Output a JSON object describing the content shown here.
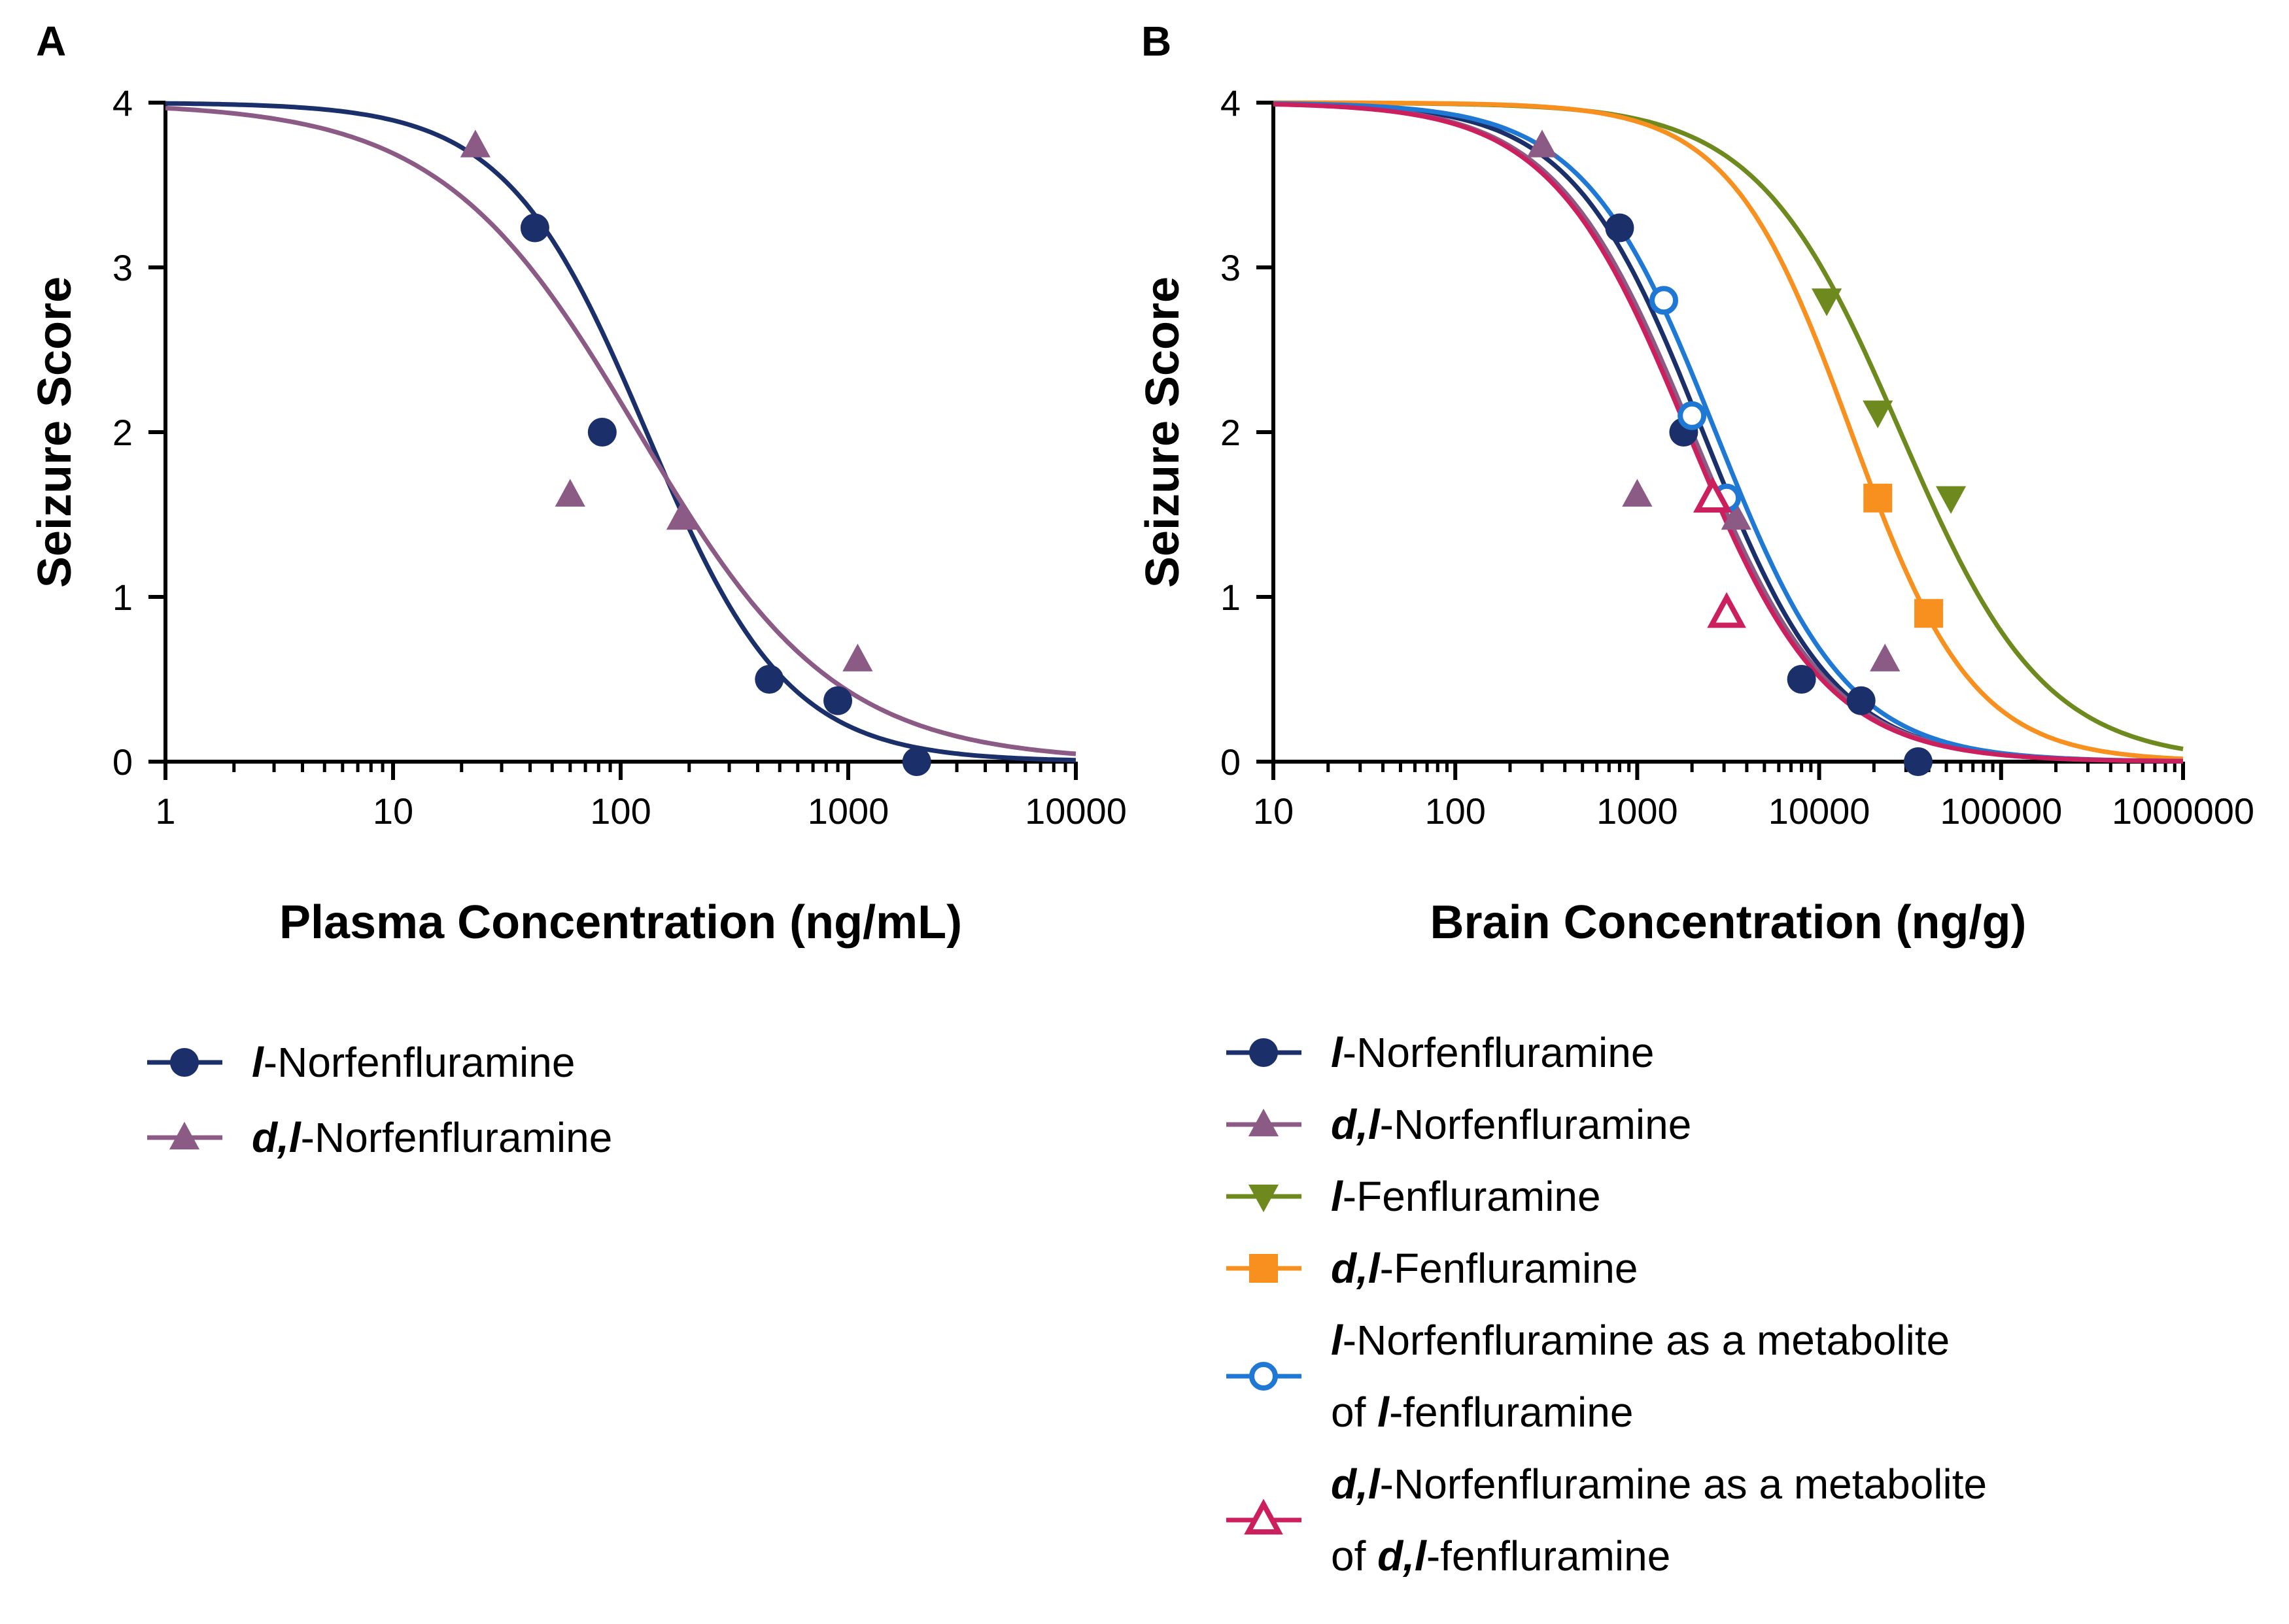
{
  "chart_data": [
    {
      "panel": "A",
      "type": "scatter",
      "xlabel": "Plasma Concentration (ng/mL)",
      "ylabel": "Seizure Score",
      "xscale": "log",
      "xlim": [
        1,
        10000
      ],
      "ylim": [
        0,
        4
      ],
      "xticks": [
        "1",
        "10",
        "100",
        "1000",
        "10000"
      ],
      "yticks": [
        "0",
        "1",
        "2",
        "3",
        "4"
      ],
      "grid": false,
      "legend_position": "below",
      "series": [
        {
          "name_prefix": "l",
          "name_suffix": "-Norfenfluramine",
          "color": "#1b2f6b",
          "marker": "circle",
          "filled": true,
          "points": [
            [
              42,
              3.24
            ],
            [
              83,
              2.0
            ],
            [
              450,
              0.5
            ],
            [
              900,
              0.37
            ],
            [
              2000,
              0.0
            ]
          ],
          "fit": {
            "top": 4,
            "bottom": 0,
            "ec50": 130,
            "hill": 1.4
          }
        },
        {
          "name_prefix": "d,l",
          "name_suffix": "-Norfenfluramine",
          "color": "#8b5a85",
          "marker": "triangle",
          "filled": true,
          "points": [
            [
              23,
              3.74
            ],
            [
              60,
              1.62
            ],
            [
              185,
              1.48
            ],
            [
              1100,
              0.62
            ]
          ],
          "fit": {
            "top": 4,
            "bottom": 0,
            "ec50": 120,
            "hill": 1.0
          }
        }
      ]
    },
    {
      "panel": "B",
      "type": "scatter",
      "xlabel": "Brain Concentration (ng/g)",
      "ylabel": "Seizure Score",
      "xscale": "log",
      "xlim": [
        10,
        1000000
      ],
      "ylim": [
        0,
        4
      ],
      "xticks": [
        "10",
        "100",
        "1000",
        "10000",
        "100000",
        "1000000"
      ],
      "yticks": [
        "0",
        "1",
        "2",
        "3",
        "4"
      ],
      "grid": false,
      "legend_position": "below",
      "series": [
        {
          "name_prefix": "l",
          "name_suffix": "-Norfenfluramine",
          "color": "#1b2f6b",
          "marker": "circle",
          "filled": true,
          "points": [
            [
              800,
              3.24
            ],
            [
              1800,
              2.0
            ],
            [
              8000,
              0.5
            ],
            [
              17000,
              0.37
            ],
            [
              35000,
              0.0
            ]
          ],
          "fit": {
            "top": 4,
            "bottom": 0,
            "ec50": 2300,
            "hill": 1.2
          }
        },
        {
          "name_prefix": "d,l",
          "name_suffix": "-Norfenfluramine",
          "color": "#8b5a85",
          "marker": "triangle",
          "filled": true,
          "points": [
            [
              300,
              3.74
            ],
            [
              1000,
              1.62
            ],
            [
              3500,
              1.48
            ],
            [
              23000,
              0.62
            ]
          ],
          "fit": {
            "top": 4,
            "bottom": 0,
            "ec50": 2000,
            "hill": 1.15
          }
        },
        {
          "name_prefix": "l",
          "name_suffix": "-Fenfluramine",
          "color": "#6e8a1f",
          "marker": "triangle-down",
          "filled": true,
          "points": [
            [
              11000,
              2.8
            ],
            [
              21000,
              2.12
            ],
            [
              53000,
              1.6
            ]
          ],
          "fit": {
            "top": 4,
            "bottom": 0,
            "ec50": 28000,
            "hill": 1.1
          }
        },
        {
          "name_prefix": "d,l",
          "name_suffix": "-Fenfluramine",
          "color": "#f7901e",
          "marker": "square",
          "filled": true,
          "points": [
            [
              21000,
              1.6
            ],
            [
              40000,
              0.9
            ]
          ],
          "fit": {
            "top": 4,
            "bottom": 0,
            "ec50": 15000,
            "hill": 1.3
          }
        },
        {
          "name_lines": [
            [
              {
                "t": "l",
                "i": true
              },
              {
                "t": "-Norfenfluramine as a metabolite",
                "i": false
              }
            ],
            [
              {
                "t": "of ",
                "i": false
              },
              {
                "t": "l",
                "i": true
              },
              {
                "t": "-fenfluramine",
                "i": false
              }
            ]
          ],
          "color": "#1f78d4",
          "marker": "circle",
          "filled": false,
          "points": [
            [
              1400,
              2.8
            ],
            [
              2000,
              2.1
            ],
            [
              3100,
              1.6
            ]
          ],
          "fit": {
            "top": 4,
            "bottom": 0,
            "ec50": 2700,
            "hill": 1.2
          }
        },
        {
          "name_lines": [
            [
              {
                "t": "d,l",
                "i": true
              },
              {
                "t": "-Norfenfluramine as a metabolite",
                "i": false
              }
            ],
            [
              {
                "t": "of ",
                "i": false
              },
              {
                "t": "d,l",
                "i": true
              },
              {
                "t": "-fenfluramine",
                "i": false
              }
            ]
          ],
          "color": "#cc1f5e",
          "marker": "triangle",
          "filled": false,
          "points": [
            [
              2600,
              1.6
            ],
            [
              3100,
              0.9
            ]
          ],
          "fit": {
            "top": 4,
            "bottom": 0,
            "ec50": 1900,
            "hill": 1.15
          }
        }
      ]
    }
  ]
}
